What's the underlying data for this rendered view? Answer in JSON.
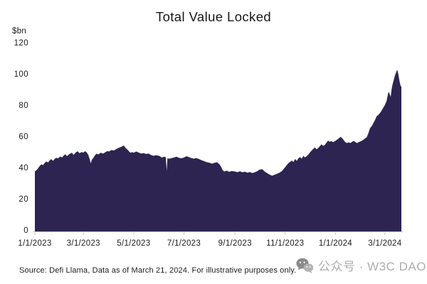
{
  "title": "Total Value Locked",
  "source": "Source: Defi Llama, Data as of March 21, 2024. For illustrative purposes only.",
  "watermark": {
    "icon": "wechat-icon",
    "text": "公众号 · W3C DAO"
  },
  "y_axis": {
    "unit_label": "$bn",
    "ticks": [
      0,
      20,
      40,
      60,
      80,
      100,
      120
    ]
  },
  "x_axis": {
    "tick_days": [
      0,
      59,
      120,
      181,
      243,
      304,
      365,
      425
    ],
    "tick_labels": [
      "1/1/2023",
      "3/1/2023",
      "5/1/2023",
      "7/1/2023",
      "9/1/2023",
      "11/1/2023",
      "1/1/2024",
      "3/1/2024"
    ]
  },
  "colors": {
    "area": "#2d2452",
    "axis": "#c9c7d2",
    "label_text": "#1a1a1a",
    "watermark_text": "#aeaeae",
    "watermark_icon_dark": "#8a8a8a",
    "watermark_icon_light": "#b3b3b3"
  },
  "chart_data": {
    "type": "area",
    "title": "Total Value Locked",
    "ylabel": "$bn",
    "ylim": [
      0,
      120
    ],
    "x_unit": "days since 1/1/2023",
    "x_range": [
      0,
      445
    ],
    "x_tick_days": [
      0,
      59,
      120,
      181,
      243,
      304,
      365,
      425
    ],
    "x_tick_labels": [
      "1/1/2023",
      "3/1/2023",
      "5/1/2023",
      "7/1/2023",
      "9/1/2023",
      "11/1/2023",
      "1/1/2024",
      "3/1/2024"
    ],
    "grid": false,
    "legend": false,
    "series": [
      {
        "name": "Total Value Locked ($bn)",
        "points": [
          [
            0,
            38.5
          ],
          [
            2,
            39.2
          ],
          [
            4,
            40.5
          ],
          [
            6,
            42.0
          ],
          [
            8,
            43.0
          ],
          [
            10,
            42.5
          ],
          [
            12,
            44.0
          ],
          [
            14,
            44.8
          ],
          [
            16,
            44.2
          ],
          [
            18,
            45.5
          ],
          [
            20,
            46.3
          ],
          [
            22,
            45.2
          ],
          [
            24,
            46.5
          ],
          [
            26,
            47.2
          ],
          [
            28,
            46.8
          ],
          [
            31,
            48.0
          ],
          [
            33,
            47.4
          ],
          [
            35,
            48.6
          ],
          [
            37,
            49.4
          ],
          [
            39,
            48.2
          ],
          [
            42,
            49.6
          ],
          [
            45,
            50.4
          ],
          [
            47,
            49.0
          ],
          [
            50,
            50.8
          ],
          [
            52,
            51.3
          ],
          [
            54,
            50.2
          ],
          [
            57,
            50.8
          ],
          [
            59,
            50.5
          ],
          [
            61,
            51.4
          ],
          [
            63,
            50.6
          ],
          [
            65,
            49.0
          ],
          [
            67,
            45.5
          ],
          [
            68,
            43.5
          ],
          [
            69,
            45.8
          ],
          [
            71,
            47.2
          ],
          [
            73,
            48.8
          ],
          [
            75,
            49.8
          ],
          [
            77,
            49.3
          ],
          [
            80,
            50.4
          ],
          [
            83,
            49.8
          ],
          [
            86,
            50.9
          ],
          [
            88,
            51.4
          ],
          [
            90,
            51.2
          ],
          [
            93,
            52.2
          ],
          [
            96,
            51.8
          ],
          [
            99,
            52.8
          ],
          [
            102,
            53.6
          ],
          [
            105,
            54.2
          ],
          [
            108,
            55.0
          ],
          [
            110,
            53.6
          ],
          [
            112,
            52.6
          ],
          [
            114,
            51.4
          ],
          [
            116,
            50.4
          ],
          [
            118,
            50.8
          ],
          [
            120,
            50.4
          ],
          [
            123,
            51.2
          ],
          [
            126,
            50.6
          ],
          [
            129,
            49.8
          ],
          [
            132,
            50.2
          ],
          [
            135,
            49.6
          ],
          [
            138,
            49.9
          ],
          [
            141,
            49.0
          ],
          [
            144,
            48.4
          ],
          [
            147,
            48.8
          ],
          [
            151,
            48.4
          ],
          [
            154,
            47.3
          ],
          [
            157,
            47.8
          ],
          [
            159,
            47.5
          ],
          [
            160,
            38.8
          ],
          [
            161,
            46.8
          ],
          [
            163,
            46.6
          ],
          [
            166,
            46.9
          ],
          [
            169,
            47.4
          ],
          [
            172,
            47.8
          ],
          [
            175,
            47.2
          ],
          [
            178,
            46.8
          ],
          [
            181,
            47.3
          ],
          [
            184,
            48.2
          ],
          [
            187,
            47.6
          ],
          [
            190,
            47.0
          ],
          [
            193,
            46.6
          ],
          [
            196,
            47.0
          ],
          [
            199,
            46.4
          ],
          [
            202,
            45.7
          ],
          [
            205,
            45.1
          ],
          [
            208,
            44.5
          ],
          [
            212,
            44.0
          ],
          [
            215,
            43.4
          ],
          [
            218,
            43.9
          ],
          [
            221,
            44.3
          ],
          [
            224,
            43.1
          ],
          [
            226,
            41.5
          ],
          [
            228,
            39.2
          ],
          [
            230,
            38.4
          ],
          [
            233,
            38.9
          ],
          [
            236,
            38.2
          ],
          [
            239,
            38.7
          ],
          [
            243,
            38.4
          ],
          [
            246,
            37.9
          ],
          [
            249,
            38.6
          ],
          [
            252,
            37.8
          ],
          [
            255,
            38.3
          ],
          [
            258,
            37.6
          ],
          [
            261,
            38.1
          ],
          [
            264,
            37.4
          ],
          [
            267,
            37.9
          ],
          [
            270,
            38.6
          ],
          [
            273,
            39.6
          ],
          [
            276,
            39.9
          ],
          [
            279,
            38.4
          ],
          [
            282,
            37.3
          ],
          [
            285,
            36.4
          ],
          [
            288,
            35.7
          ],
          [
            291,
            36.3
          ],
          [
            294,
            36.9
          ],
          [
            297,
            37.6
          ],
          [
            300,
            38.7
          ],
          [
            302,
            40.0
          ],
          [
            304,
            41.2
          ],
          [
            306,
            42.6
          ],
          [
            308,
            43.8
          ],
          [
            310,
            44.6
          ],
          [
            312,
            45.4
          ],
          [
            314,
            44.4
          ],
          [
            316,
            46.4
          ],
          [
            318,
            45.2
          ],
          [
            320,
            46.8
          ],
          [
            322,
            47.6
          ],
          [
            324,
            46.6
          ],
          [
            326,
            48.4
          ],
          [
            328,
            47.4
          ],
          [
            330,
            48.2
          ],
          [
            332,
            49.2
          ],
          [
            334,
            50.6
          ],
          [
            336,
            51.8
          ],
          [
            338,
            52.8
          ],
          [
            340,
            53.8
          ],
          [
            342,
            52.6
          ],
          [
            344,
            53.4
          ],
          [
            346,
            54.6
          ],
          [
            348,
            55.8
          ],
          [
            350,
            54.8
          ],
          [
            352,
            55.4
          ],
          [
            354,
            56.8
          ],
          [
            356,
            58.2
          ],
          [
            358,
            57.4
          ],
          [
            360,
            57.9
          ],
          [
            362,
            57.2
          ],
          [
            365,
            58.1
          ],
          [
            367,
            58.8
          ],
          [
            369,
            59.6
          ],
          [
            371,
            60.6
          ],
          [
            373,
            59.8
          ],
          [
            375,
            58.4
          ],
          [
            377,
            57.2
          ],
          [
            379,
            56.6
          ],
          [
            381,
            57.1
          ],
          [
            383,
            56.6
          ],
          [
            385,
            57.4
          ],
          [
            387,
            57.9
          ],
          [
            389,
            57.3
          ],
          [
            391,
            56.6
          ],
          [
            393,
            57.1
          ],
          [
            395,
            57.6
          ],
          [
            397,
            58.1
          ],
          [
            399,
            58.8
          ],
          [
            401,
            59.6
          ],
          [
            403,
            60.4
          ],
          [
            405,
            63.0
          ],
          [
            407,
            66.2
          ],
          [
            409,
            67.4
          ],
          [
            411,
            69.4
          ],
          [
            413,
            71.4
          ],
          [
            415,
            73.8
          ],
          [
            417,
            74.6
          ],
          [
            419,
            75.8
          ],
          [
            421,
            77.4
          ],
          [
            423,
            79.2
          ],
          [
            425,
            81.0
          ],
          [
            427,
            83.5
          ],
          [
            428,
            86.0
          ],
          [
            429,
            88.5
          ],
          [
            430,
            89.5
          ],
          [
            431,
            87.5
          ],
          [
            432,
            86.2
          ],
          [
            433,
            90.5
          ],
          [
            434,
            93.5
          ],
          [
            435,
            95.5
          ],
          [
            436,
            97.5
          ],
          [
            437,
            99.5
          ],
          [
            438,
            101.0
          ],
          [
            439,
            102.5
          ],
          [
            440,
            103.5
          ],
          [
            441,
            101.5
          ],
          [
            442,
            98.5
          ],
          [
            443,
            95.5
          ],
          [
            444,
            93.5
          ],
          [
            445,
            92.5
          ]
        ]
      }
    ]
  }
}
